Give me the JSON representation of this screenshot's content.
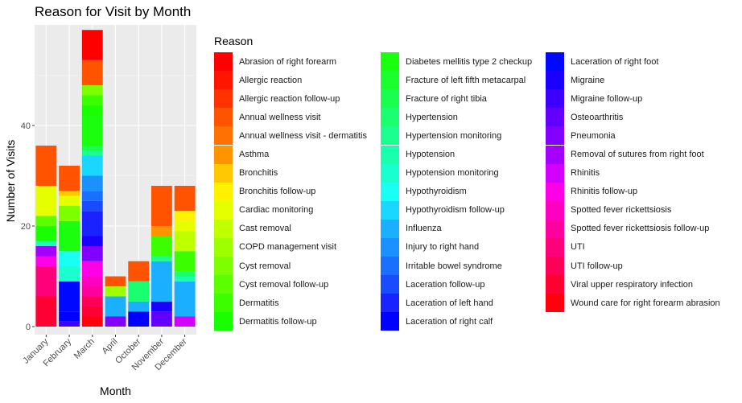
{
  "chart_data": {
    "type": "bar",
    "stacked": true,
    "title": "Reason for Visit by Month",
    "xlabel": "Month",
    "ylabel": "Number of Visits",
    "categories": [
      "January",
      "February",
      "March",
      "April",
      "October",
      "November",
      "December"
    ],
    "ylim": [
      0,
      60
    ],
    "yticks": [
      0,
      20,
      40
    ],
    "grid": true,
    "legend_title": "Reason",
    "legend_position": "right",
    "reasons": [
      {
        "name": "Abrasion of right forearm",
        "color": "#FF0000"
      },
      {
        "name": "Allergic reaction",
        "color": "#FF1500"
      },
      {
        "name": "Allergic reaction follow-up",
        "color": "#FF3200"
      },
      {
        "name": "Annual wellness visit",
        "color": "#FF5300"
      },
      {
        "name": "Annual wellness visit - dermatitis",
        "color": "#FF7100"
      },
      {
        "name": "Asthma",
        "color": "#FF9300"
      },
      {
        "name": "Bronchitis",
        "color": "#FFC800"
      },
      {
        "name": "Bronchitis follow-up",
        "color": "#FFF200"
      },
      {
        "name": "Cardiac monitoring",
        "color": "#E6FF00"
      },
      {
        "name": "Cast removal",
        "color": "#BFFF00"
      },
      {
        "name": "COPD management visit",
        "color": "#9DFF00"
      },
      {
        "name": "Cyst removal",
        "color": "#7DFF00"
      },
      {
        "name": "Cyst removal follow-up",
        "color": "#5CFF00"
      },
      {
        "name": "Dermatitis",
        "color": "#3BFF00"
      },
      {
        "name": "Dermatitis follow-up",
        "color": "#1AFF00"
      },
      {
        "name": "Diabetes mellitis type 2 checkup",
        "color": "#1AFF0D"
      },
      {
        "name": "Fracture of left fifth metacarpal",
        "color": "#1AFF2E"
      },
      {
        "name": "Fracture of right tibia",
        "color": "#1AFF4F"
      },
      {
        "name": "Hypertension",
        "color": "#1AFF70"
      },
      {
        "name": "Hypertension monitoring",
        "color": "#1AFF8F"
      },
      {
        "name": "Hypotension",
        "color": "#1AFFAE"
      },
      {
        "name": "Hypotension monitoring",
        "color": "#1AFFD0"
      },
      {
        "name": "Hypothyroidism",
        "color": "#1AFFF5"
      },
      {
        "name": "Hypothyroidism follow-up",
        "color": "#1AD7FF"
      },
      {
        "name": "Influenza",
        "color": "#1AB0FF"
      },
      {
        "name": "Injury to right hand",
        "color": "#1A91FF"
      },
      {
        "name": "Irritable bowel syndrome",
        "color": "#1A6FFF"
      },
      {
        "name": "Laceration follow-up",
        "color": "#1A4CFF"
      },
      {
        "name": "Laceration of left hand",
        "color": "#1A22FF"
      },
      {
        "name": "Laceration of right calf",
        "color": "#0000FF"
      },
      {
        "name": "Laceration of right foot",
        "color": "#0008FF"
      },
      {
        "name": "Migraine",
        "color": "#1A00FF"
      },
      {
        "name": "Migraine follow-up",
        "color": "#3D00FF"
      },
      {
        "name": "Osteoarthritis",
        "color": "#6200FF"
      },
      {
        "name": "Pneumonia",
        "color": "#8100FF"
      },
      {
        "name": "Removal of sutures from right foot",
        "color": "#A300FF"
      },
      {
        "name": "Rhinitis",
        "color": "#D400FF"
      },
      {
        "name": "Rhinitis follow-up",
        "color": "#FF00E6"
      },
      {
        "name": "Spotted fever rickettsiosis",
        "color": "#FF00C3"
      },
      {
        "name": "Spotted fever rickettsiosis follow-up",
        "color": "#FF009E"
      },
      {
        "name": "UTI",
        "color": "#FF007A"
      },
      {
        "name": "UTI follow-up",
        "color": "#FF0057"
      },
      {
        "name": "Viral upper respiratory infection",
        "color": "#FF0033"
      },
      {
        "name": "Wound care for right forearm abrasion",
        "color": "#FF000F"
      }
    ],
    "stacks": {
      "January": [
        {
          "reason": "Viral upper respiratory infection",
          "value": 6
        },
        {
          "reason": "UTI",
          "value": 6
        },
        {
          "reason": "Rhinitis follow-up",
          "value": 2
        },
        {
          "reason": "Removal of sutures from right foot",
          "value": 2
        },
        {
          "reason": "Hypotension",
          "value": 1
        },
        {
          "reason": "Dermatitis follow-up",
          "value": 3
        },
        {
          "reason": "Cyst removal follow-up",
          "value": 2
        },
        {
          "reason": "Cardiac monitoring",
          "value": 6
        },
        {
          "reason": "Bronchitis",
          "value": 0
        },
        {
          "reason": "Asthma",
          "value": 0
        },
        {
          "reason": "Annual wellness visit",
          "value": 8
        }
      ],
      "February": [
        {
          "reason": "Migraine follow-up",
          "value": 1
        },
        {
          "reason": "Laceration of right calf",
          "value": 2
        },
        {
          "reason": "Laceration of right foot",
          "value": 6
        },
        {
          "reason": "Hypotension monitoring",
          "value": 3
        },
        {
          "reason": "Hypothyroidism",
          "value": 3
        },
        {
          "reason": "Diabetes mellitis type 2 checkup",
          "value": 6
        },
        {
          "reason": "Cyst removal",
          "value": 3
        },
        {
          "reason": "Cardiac monitoring",
          "value": 2
        },
        {
          "reason": "Bronchitis",
          "value": 1
        },
        {
          "reason": "Annual wellness visit",
          "value": 5
        }
      ],
      "March": [
        {
          "reason": "Wound care for right forearm abrasion",
          "value": 2
        },
        {
          "reason": "Viral upper respiratory infection",
          "value": 2
        },
        {
          "reason": "UTI follow-up",
          "value": 2
        },
        {
          "reason": "Spotted fever rickettsiosis follow-up",
          "value": 2
        },
        {
          "reason": "Spotted fever rickettsiosis",
          "value": 2
        },
        {
          "reason": "Rhinitis follow-up",
          "value": 3
        },
        {
          "reason": "Pneumonia",
          "value": 3
        },
        {
          "reason": "Migraine",
          "value": 2
        },
        {
          "reason": "Laceration of left hand",
          "value": 5
        },
        {
          "reason": "Laceration follow-up",
          "value": 2
        },
        {
          "reason": "Irritable bowel syndrome",
          "value": 2
        },
        {
          "reason": "Injury to right hand",
          "value": 3
        },
        {
          "reason": "Hypothyroidism follow-up",
          "value": 4
        },
        {
          "reason": "Hypertension monitoring",
          "value": 1
        },
        {
          "reason": "Fracture of right tibia",
          "value": 1
        },
        {
          "reason": "Diabetes mellitis type 2 checkup",
          "value": 6
        },
        {
          "reason": "Dermatitis follow-up",
          "value": 2
        },
        {
          "reason": "Dermatitis",
          "value": 2
        },
        {
          "reason": "Cyst removal",
          "value": 2
        },
        {
          "reason": "Asthma",
          "value": 0
        },
        {
          "reason": "Annual wellness visit - dermatitis",
          "value": 0
        },
        {
          "reason": "Annual wellness visit",
          "value": 5
        },
        {
          "reason": "Allergic reaction follow-up",
          "value": 0
        },
        {
          "reason": "Allergic reaction",
          "value": 0
        },
        {
          "reason": "Abrasion of right forearm",
          "value": 6
        }
      ],
      "April": [
        {
          "reason": "Pneumonia",
          "value": 2
        },
        {
          "reason": "Influenza",
          "value": 4
        },
        {
          "reason": "COPD management visit",
          "value": 2
        },
        {
          "reason": "Annual wellness visit",
          "value": 2
        }
      ],
      "October": [
        {
          "reason": "Laceration of right calf",
          "value": 3
        },
        {
          "reason": "Influenza",
          "value": 2
        },
        {
          "reason": "Hypertension",
          "value": 4
        },
        {
          "reason": "Annual wellness visit",
          "value": 4
        }
      ],
      "November": [
        {
          "reason": "Osteoarthritis",
          "value": 3
        },
        {
          "reason": "Migraine",
          "value": 2
        },
        {
          "reason": "Influenza",
          "value": 8
        },
        {
          "reason": "Hypertension monitoring",
          "value": 1
        },
        {
          "reason": "Dermatitis",
          "value": 4
        },
        {
          "reason": "Asthma",
          "value": 2
        },
        {
          "reason": "Annual wellness visit",
          "value": 8
        }
      ],
      "December": [
        {
          "reason": "Rhinitis",
          "value": 2
        },
        {
          "reason": "Influenza",
          "value": 7
        },
        {
          "reason": "Hypotension",
          "value": 1
        },
        {
          "reason": "Hypertension",
          "value": 1
        },
        {
          "reason": "Dermatitis",
          "value": 4
        },
        {
          "reason": "Cast removal",
          "value": 4
        },
        {
          "reason": "Cardiac monitoring",
          "value": 2
        },
        {
          "reason": "Bronchitis follow-up",
          "value": 2
        },
        {
          "reason": "Annual wellness visit",
          "value": 5
        }
      ]
    }
  }
}
